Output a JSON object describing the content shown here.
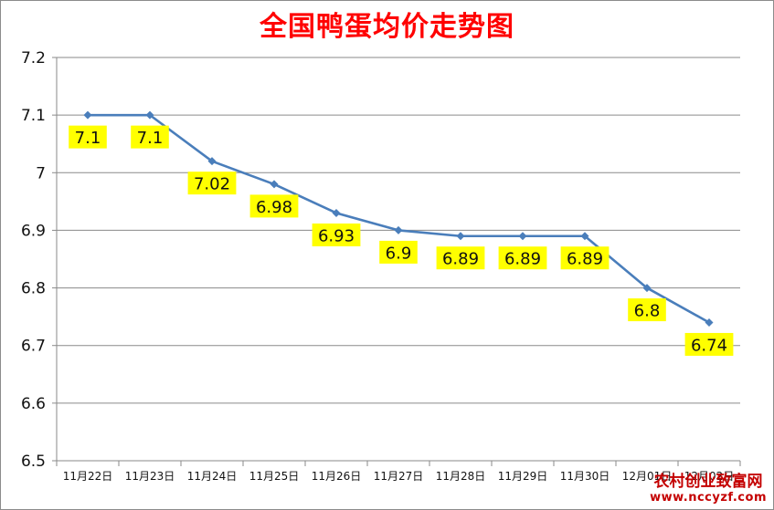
{
  "chart_data": {
    "type": "line",
    "title": "全国鸭蛋均价走势图",
    "categories": [
      "11月22日",
      "11月23日",
      "11月24日",
      "11月25日",
      "11月26日",
      "11月27日",
      "11月28日",
      "11月29日",
      "11月30日",
      "12月01日",
      "12月02日"
    ],
    "series": [
      {
        "values": [
          7.1,
          7.1,
          7.02,
          6.98,
          6.93,
          6.9,
          6.89,
          6.89,
          6.89,
          6.8,
          6.74
        ]
      }
    ],
    "data_labels": [
      "7.1",
      "7.1",
      "7.02",
      "6.98",
      "6.93",
      "6.9",
      "6.89",
      "6.89",
      "6.89",
      "6.8",
      "6.74"
    ],
    "ylim": [
      6.5,
      7.2
    ],
    "yticks": [
      "6.5",
      "6.6",
      "6.7",
      "6.8",
      "6.9",
      "7",
      "7.1",
      "7.2"
    ],
    "xlabel": "",
    "ylabel": "",
    "grid": "horizontal",
    "line_color": "#4a7ebb",
    "label_bg_color": "#ffff00",
    "title_color": "#ff0000"
  },
  "watermark": {
    "name": "农村创业致富网",
    "url": "www.nccyzf.com"
  }
}
